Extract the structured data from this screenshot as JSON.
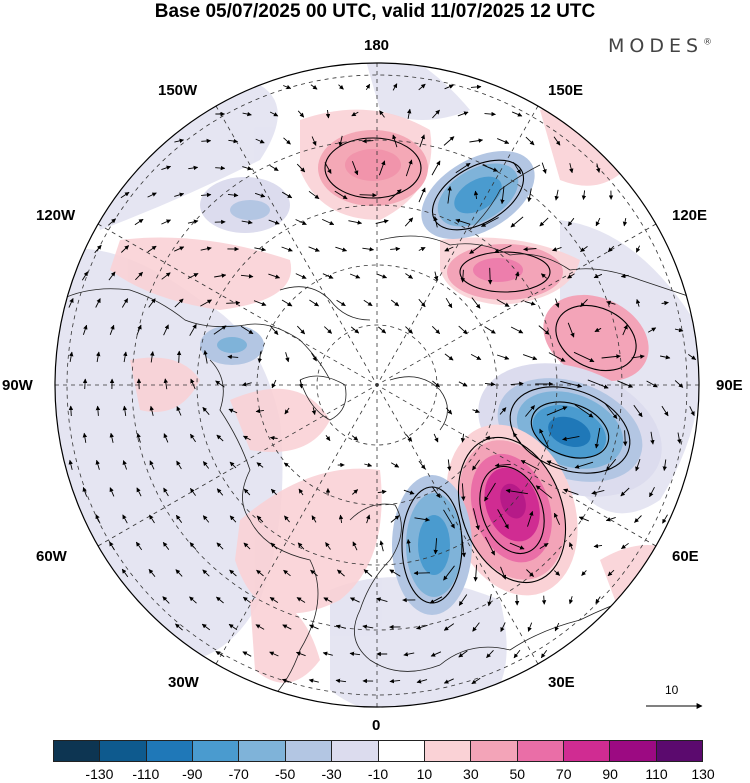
{
  "title": "Base 05/07/2025 00 UTC, valid 11/07/2025 12 UTC",
  "brand": {
    "name": "MODES",
    "mark": "®"
  },
  "longitude_labels": {
    "top": "180",
    "bottom": "0",
    "left": "90W",
    "right": "90E",
    "upper_left_1": "150W",
    "upper_left_2": "120W",
    "lower_left_1": "60W",
    "lower_left_2": "30W",
    "upper_right_1": "150E",
    "upper_right_2": "120E",
    "lower_right_1": "60E",
    "lower_right_2": "30E"
  },
  "reference_vector": {
    "label": "10"
  },
  "colorbar": {
    "colors": [
      "#0d3552",
      "#0e5a8e",
      "#1f78b8",
      "#4a9bcf",
      "#7fb3d9",
      "#b3c6e3",
      "#dcdcee",
      "#ffffff",
      "#fad2d6",
      "#f3a4b8",
      "#ea6ea7",
      "#d02c92",
      "#9c0a82",
      "#5b0a6e"
    ],
    "ticks": [
      "-130",
      "-110",
      "-90",
      "-70",
      "-50",
      "-30",
      "-10",
      "10",
      "30",
      "50",
      "70",
      "90",
      "110",
      "130"
    ]
  },
  "anomalies": [
    {
      "id": "blue-ne-strong",
      "value": -90,
      "color": "#2e7cb8"
    },
    {
      "id": "red-ne-strong",
      "value": 90,
      "color": "#c81e8c"
    },
    {
      "id": "blue-europe",
      "value": -70,
      "color": "#3f8cc4"
    },
    {
      "id": "blue-pacific",
      "value": -70,
      "color": "#4a93c9"
    },
    {
      "id": "red-north-pacific",
      "value": 30,
      "color": "#f4a8b6"
    },
    {
      "id": "red-siberia",
      "value": 50,
      "color": "#ec8aa4"
    },
    {
      "id": "red-east-siberia",
      "value": 30,
      "color": "#f2a9b6"
    }
  ]
}
